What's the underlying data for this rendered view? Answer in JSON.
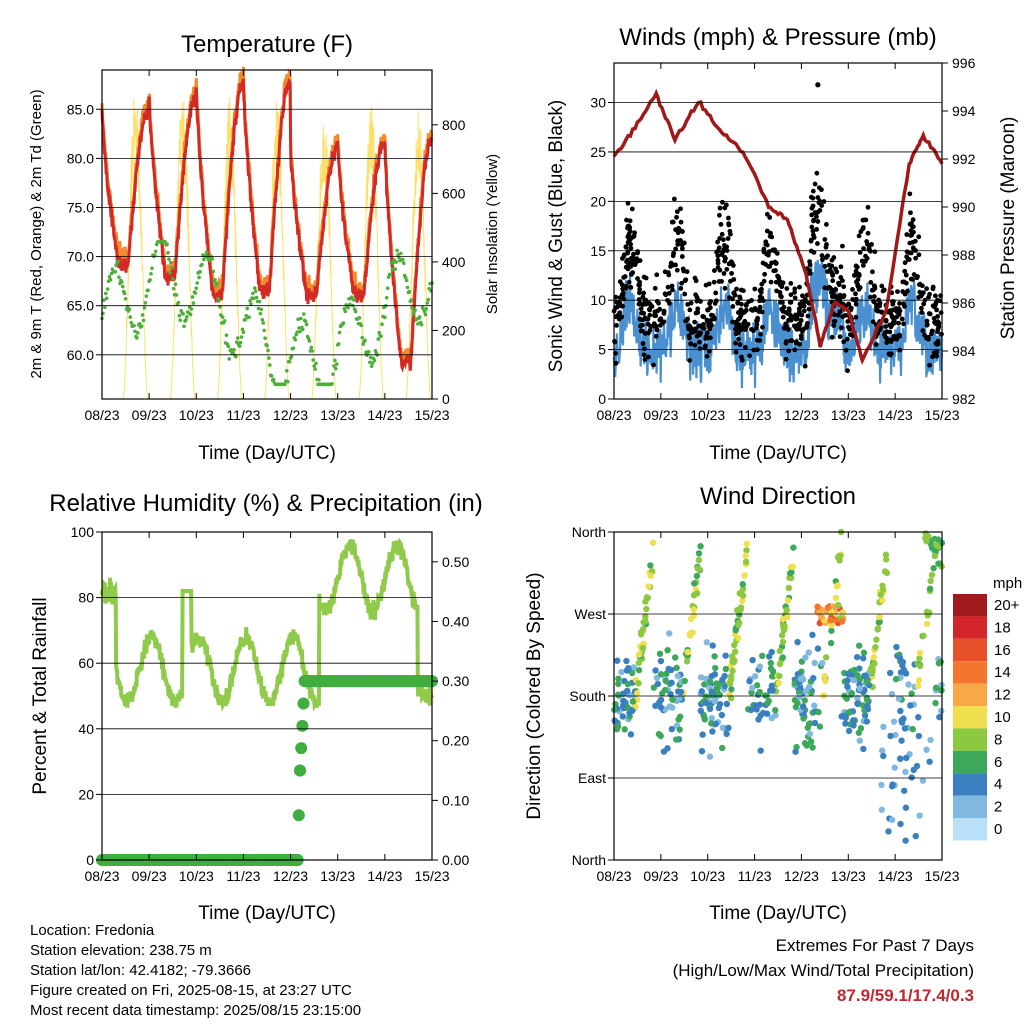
{
  "x_ticks": [
    "08/23",
    "09/23",
    "10/23",
    "11/23",
    "12/23",
    "13/23",
    "14/23",
    "15/23"
  ],
  "temperature_panel": {
    "title": "Temperature (F)",
    "xlabel": "Time (Day/UTC)",
    "ylabel_left": "2m & 9m T (Red, Orange) & 2m Td (Green)",
    "ylabel_right": "Solar Insolation (Yellow)",
    "y_left_ticks": [
      "60.0",
      "65.0",
      "70.0",
      "75.0",
      "80.0",
      "85.0"
    ],
    "y_right_ticks": [
      "0",
      "200",
      "400",
      "600",
      "800"
    ],
    "colors": {
      "t2m": "#d42a25",
      "t9m": "#f28a30",
      "td2m": "#4daf3a",
      "solar": "#ffe066"
    }
  },
  "wind_panel": {
    "title": "Winds (mph) & Pressure (mb)",
    "xlabel": "Time (Day/UTC)",
    "ylabel_left": "Sonic Wind & Gust (Blue, Black)",
    "ylabel_right": "Station Pressure (Maroon)",
    "y_left_ticks": [
      "0",
      "5",
      "10",
      "15",
      "20",
      "25",
      "30"
    ],
    "y_right_ticks": [
      "982",
      "984",
      "986",
      "988",
      "990",
      "992",
      "994",
      "996"
    ],
    "colors": {
      "wind": "#4a90d0",
      "gust": "#000000",
      "pressure": "#a01818"
    }
  },
  "rh_panel": {
    "title": "Relative Humidity (%) & Precipitation (in)",
    "xlabel": "Time (Day/UTC)",
    "ylabel_left": "Percent & Total Rainfall",
    "y_left_ticks": [
      "0",
      "20",
      "40",
      "60",
      "80",
      "100"
    ],
    "y_right_ticks": [
      "0.00",
      "0.10",
      "0.20",
      "0.30",
      "0.40",
      "0.50"
    ],
    "colors": {
      "rh": "#8fca4a",
      "precip": "#3fae3f"
    }
  },
  "dir_panel": {
    "title": "Wind Direction",
    "xlabel": "Time (Day/UTC)",
    "ylabel_left": "Direction (Colored By Speed)",
    "y_left_ticks": [
      "North",
      "East",
      "South",
      "West",
      "North"
    ],
    "legend_title": "mph",
    "legend_labels": [
      "20+",
      "18",
      "16",
      "14",
      "12",
      "10",
      "8",
      "6",
      "4",
      "2",
      "0"
    ],
    "legend_colors": [
      "#a01c1c",
      "#d4262a",
      "#e8502c",
      "#f2762e",
      "#f8a848",
      "#f0e050",
      "#8cc840",
      "#3ea85a",
      "#3a80c0",
      "#80b8e0",
      "#b8e0f8"
    ]
  },
  "info": {
    "location": "Location: Fredonia",
    "elevation": "Station elevation: 238.75 m",
    "latlon": "Station lat/lon: 42.4182; -79.3666",
    "created": "Figure created on Fri, 2025-08-15, at 23:27 UTC",
    "recent": "Most recent data timestamp: 2025/08/15 23:15:00"
  },
  "extremes": {
    "title": "Extremes For Past 7 Days",
    "subtitle": "(High/Low/Max Wind/Total Precipitation)",
    "values": "87.9/59.1/17.4/0.3"
  },
  "chart_data": [
    {
      "type": "line",
      "title": "Temperature (F)",
      "x": [
        "08/23",
        "09/23",
        "10/23",
        "11/23",
        "12/23",
        "13/23",
        "14/23",
        "15/23"
      ],
      "daily_max_t2m": [
        85.0,
        86.3,
        87.5,
        87.9,
        81.0,
        81.5,
        82.0
      ],
      "daily_min_t2m": [
        69.0,
        68.0,
        66.0,
        66.5,
        66.0,
        66.0,
        59.1
      ],
      "td2m_range": [
        57.0,
        71.5
      ],
      "solar_peak": [
        910,
        900,
        890,
        880,
        840,
        870,
        850
      ],
      "ylim": [
        55.5,
        89.0
      ],
      "y2lim": [
        0,
        960
      ]
    },
    {
      "type": "line",
      "title": "Winds (mph) & Pressure (mb)",
      "x": [
        "08/23",
        "09/23",
        "10/23",
        "11/23",
        "12/23",
        "13/23",
        "14/23",
        "15/23"
      ],
      "pressure_points": [
        [
          0.0,
          992.1
        ],
        [
          0.5,
          993.5
        ],
        [
          0.9,
          994.7
        ],
        [
          1.3,
          992.8
        ],
        [
          1.8,
          994.4
        ],
        [
          2.3,
          993.1
        ],
        [
          2.8,
          992.2
        ],
        [
          3.3,
          990.0
        ],
        [
          3.7,
          989.5
        ],
        [
          4.1,
          987.2
        ],
        [
          4.4,
          984.2
        ],
        [
          4.7,
          986.0
        ],
        [
          5.0,
          985.7
        ],
        [
          5.3,
          983.6
        ],
        [
          5.8,
          985.6
        ],
        [
          6.3,
          991.8
        ],
        [
          6.6,
          993.0
        ],
        [
          7.0,
          991.8
        ]
      ],
      "max_gust": 31.8,
      "ylim": [
        0,
        34
      ],
      "y2lim": [
        982,
        996
      ]
    },
    {
      "type": "line",
      "title": "Relative Humidity (%) & Precipitation (in)",
      "x": [
        "08/23",
        "09/23",
        "10/23",
        "11/23",
        "12/23",
        "13/23",
        "14/23",
        "15/23"
      ],
      "rh_range": [
        47,
        99
      ],
      "precip_total": [
        [
          0.0,
          0.0
        ],
        [
          4.15,
          0.0
        ],
        [
          4.2,
          0.15
        ],
        [
          4.3,
          0.3
        ],
        [
          7.0,
          0.3
        ]
      ],
      "ylim": [
        0,
        100
      ],
      "y2lim": [
        0,
        0.55
      ]
    },
    {
      "type": "scatter",
      "title": "Wind Direction",
      "x": [
        "08/23",
        "09/23",
        "10/23",
        "11/23",
        "12/23",
        "13/23",
        "14/23",
        "15/23"
      ],
      "y_categories": [
        "North",
        "East",
        "South",
        "West",
        "North"
      ],
      "ylim": [
        0,
        360
      ]
    }
  ]
}
